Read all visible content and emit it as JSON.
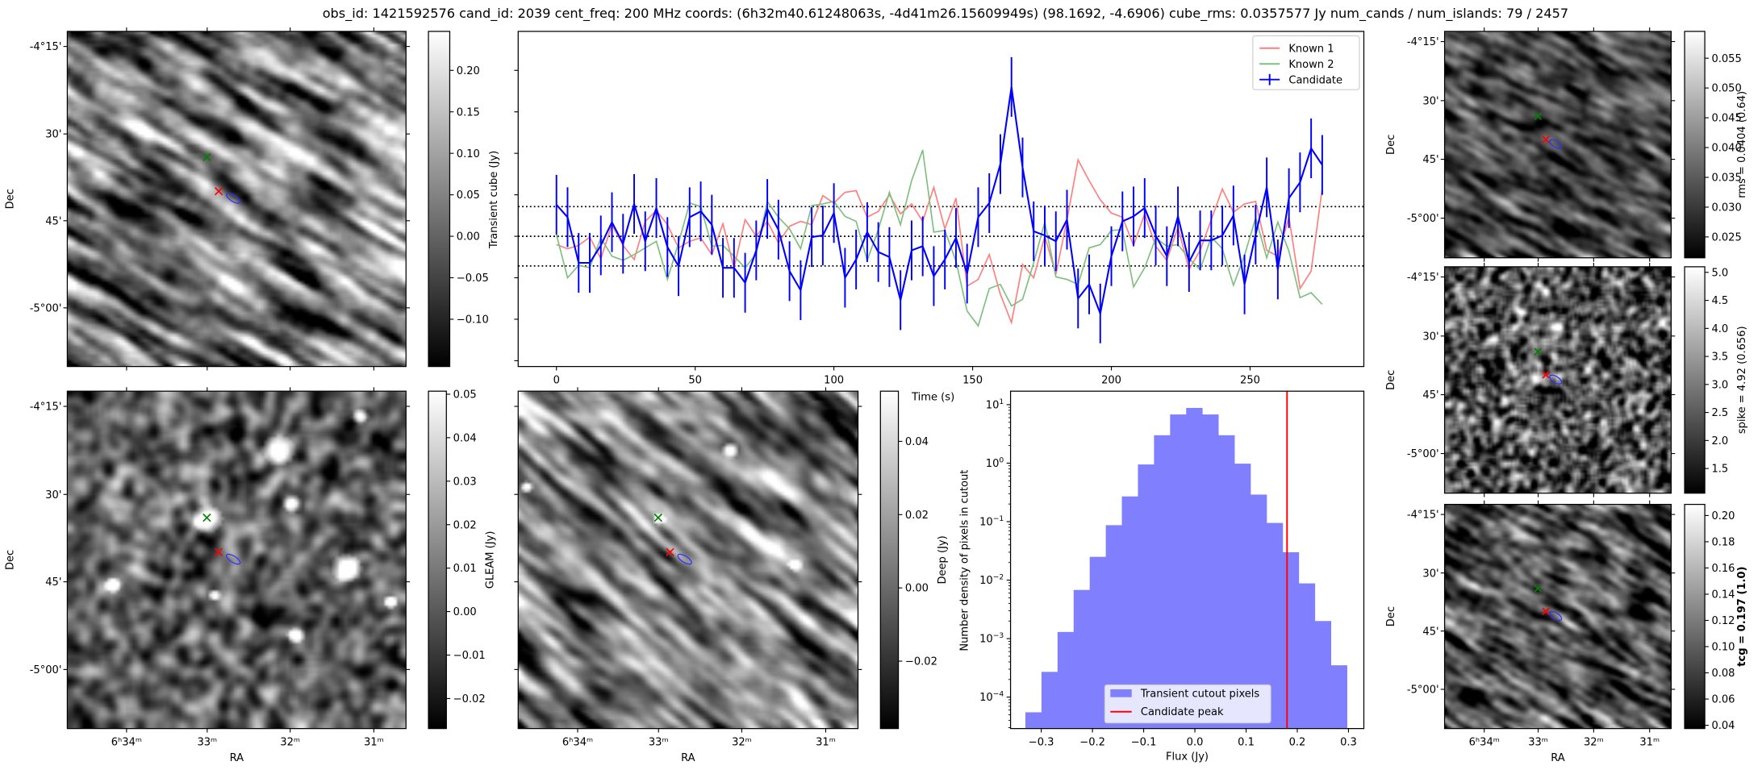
{
  "title": "obs_id: 1421592576 cand_id: 2039 cent_freq: 200 MHz coords: (6h32m40.61248063s, -4d41m26.15609949s) (98.1692, -4.6906) cube_rms: 0.0357577 Jy num_cands / num_islands: 79 / 2457",
  "sky_axes": {
    "ra_label": "RA",
    "dec_label": "Dec",
    "ra_ticks": [
      "6ʰ34ᵐ",
      "33ᵐ",
      "32ᵐ",
      "31ᵐ"
    ],
    "dec_ticks": [
      "-4°15'",
      "30'",
      "45'",
      "-5°00'"
    ]
  },
  "panels": [
    {
      "key": "transient",
      "colorbar": {
        "label": "",
        "bold": false,
        "range": [
          -0.157,
          0.247
        ],
        "ticks": [
          -0.1,
          -0.05,
          0.0,
          0.05,
          0.1,
          0.15,
          0.2
        ],
        "tick_labels": [
          "−0.10",
          "−0.05",
          "0.00",
          "0.05",
          "0.10",
          "0.15",
          "0.20"
        ]
      }
    },
    {
      "key": "gleam",
      "colorbar": {
        "label": "GLEAM (Jy)",
        "bold": false,
        "range": [
          -0.0269,
          0.0507
        ],
        "ticks": [
          -0.02,
          -0.01,
          0.0,
          0.01,
          0.02,
          0.03,
          0.04,
          0.05
        ],
        "tick_labels": [
          "−0.02",
          "−0.01",
          "0.00",
          "0.01",
          "0.02",
          "0.03",
          "0.04",
          "0.05"
        ]
      }
    },
    {
      "key": "deep",
      "colorbar": {
        "label": "Deep (Jy)",
        "bold": false,
        "range": [
          -0.0384,
          0.0537
        ],
        "ticks": [
          -0.02,
          0.0,
          0.02,
          0.04
        ],
        "tick_labels": [
          "−0.02",
          "0.00",
          "0.02",
          "0.04"
        ]
      }
    },
    {
      "key": "rms",
      "colorbar": {
        "label": "rms = 0.0404 (0.64)",
        "bold": false,
        "range": [
          0.0215,
          0.0595
        ],
        "ticks": [
          0.025,
          0.03,
          0.035,
          0.04,
          0.045,
          0.05,
          0.055
        ],
        "tick_labels": [
          "0.025",
          "0.030",
          "0.035",
          "0.040",
          "0.045",
          "0.050",
          "0.055"
        ]
      }
    },
    {
      "key": "spike",
      "colorbar": {
        "label": "spike = 4.92 (0.656)",
        "bold": false,
        "range": [
          1.06,
          5.1
        ],
        "ticks": [
          1.5,
          2.0,
          2.5,
          3.0,
          3.5,
          4.0,
          4.5,
          5.0
        ],
        "tick_labels": [
          "1.5",
          "2.0",
          "2.5",
          "3.0",
          "3.5",
          "4.0",
          "4.5",
          "5.0"
        ]
      }
    },
    {
      "key": "tcg",
      "colorbar": {
        "label": "tcg = 0.197 (1.0)",
        "bold": true,
        "range": [
          0.0375,
          0.2085
        ],
        "ticks": [
          0.04,
          0.06,
          0.08,
          0.1,
          0.12,
          0.14,
          0.16,
          0.18,
          0.2
        ],
        "tick_labels": [
          "0.04",
          "0.06",
          "0.08",
          "0.10",
          "0.12",
          "0.14",
          "0.16",
          "0.18",
          "0.20"
        ]
      }
    }
  ],
  "colors": {
    "known1": "#ff7f7f",
    "known2": "#7fbf7f",
    "candidate": "#0000ff",
    "hist": "#8080ff",
    "peak": "#ff0000"
  },
  "chart_data": [
    {
      "type": "line",
      "title": "",
      "xlabel": "Time (s)",
      "ylabel": "Transient cube (Jy)",
      "xlim": [
        -13.8,
        291
      ],
      "ylim": [
        -0.157,
        0.247
      ],
      "xticks": [
        0,
        50,
        100,
        150,
        200,
        250
      ],
      "xtick_labels": [
        "0",
        "50",
        "100",
        "150",
        "200",
        "250"
      ],
      "yticks": [
        -0.15,
        -0.1,
        -0.05,
        0.0,
        0.05,
        0.1,
        0.15,
        0.2
      ],
      "hlines": [
        -0.0357577,
        0,
        0.0357577
      ],
      "legend": {
        "placement": "top-right",
        "entries": [
          "Known 1",
          "Known 2",
          "Candidate"
        ]
      },
      "x": [
        0,
        4,
        8,
        12,
        16,
        20,
        24,
        28,
        32,
        36,
        40,
        44,
        48,
        52,
        56,
        60,
        64,
        68,
        72,
        76,
        80,
        84,
        88,
        92,
        96,
        100,
        104,
        108,
        112,
        116,
        120,
        124,
        128,
        132,
        136,
        140,
        144,
        148,
        152,
        156,
        160,
        164,
        168,
        172,
        176,
        180,
        184,
        188,
        192,
        196,
        200,
        204,
        208,
        212,
        216,
        220,
        224,
        228,
        232,
        236,
        240,
        244,
        248,
        252,
        256,
        260,
        264,
        268,
        272,
        276
      ],
      "series": [
        {
          "name": "Known 1",
          "values": [
            -0.01,
            -0.015,
            -0.011,
            -0.001,
            -0.027,
            0.014,
            -0.011,
            -0.028,
            0.018,
            0.031,
            0.014,
            -0.014,
            -0.006,
            -0.002,
            -0.022,
            0.015,
            -0.038,
            0.02,
            0.0,
            0.018,
            -0.008,
            0.012,
            0.018,
            0.014,
            0.049,
            0.04,
            0.053,
            0.055,
            0.023,
            0.03,
            0.05,
            0.027,
            0.039,
            0.018,
            0.059,
            0.009,
            0.046,
            -0.06,
            -0.052,
            -0.022,
            -0.07,
            -0.104,
            -0.034,
            -0.05,
            0.0,
            -0.046,
            0.02,
            0.092,
            0.067,
            0.044,
            0.028,
            0.023,
            -0.011,
            0.027,
            -0.012,
            -0.029,
            0.011,
            -0.04,
            -0.017,
            0.02,
            0.057,
            0.029,
            0.039,
            0.042,
            -0.017,
            -0.024,
            0.023,
            -0.063,
            -0.042,
            0.058
          ]
        },
        {
          "name": "Known 2",
          "values": [
            0.002,
            -0.05,
            -0.035,
            -0.038,
            -0.002,
            -0.024,
            -0.029,
            -0.022,
            -0.014,
            -0.006,
            -0.052,
            -0.008,
            0.04,
            0.036,
            -0.012,
            -0.011,
            -0.024,
            -0.038,
            -0.021,
            0.042,
            0.023,
            0.009,
            -0.015,
            0.037,
            0.039,
            0.042,
            0.024,
            0.018,
            -0.029,
            0.008,
            0.053,
            0.014,
            0.067,
            0.104,
            0.005,
            0.007,
            -0.03,
            -0.09,
            -0.108,
            -0.063,
            -0.058,
            -0.084,
            -0.076,
            -0.032,
            0.017,
            -0.049,
            -0.052,
            -0.058,
            -0.014,
            -0.01,
            0.007,
            0.008,
            -0.061,
            -0.038,
            -0.002,
            -0.012,
            -0.01,
            -0.027,
            -0.04,
            -0.001,
            -0.015,
            -0.059,
            -0.023,
            0.022,
            -0.026,
            0.017,
            -0.018,
            -0.074,
            -0.068,
            -0.082
          ]
        },
        {
          "name": "Candidate",
          "yerr": 0.036,
          "values": [
            0.038,
            0.023,
            -0.032,
            -0.032,
            -0.011,
            0.017,
            -0.009,
            0.039,
            -0.006,
            0.034,
            -0.013,
            -0.036,
            0.023,
            0.03,
            0.014,
            -0.038,
            -0.038,
            -0.056,
            -0.017,
            0.033,
            0.008,
            -0.042,
            -0.065,
            -0.001,
            0.001,
            0.028,
            -0.05,
            -0.028,
            0.005,
            -0.019,
            -0.025,
            -0.077,
            -0.017,
            -0.012,
            -0.048,
            -0.028,
            -0.002,
            -0.045,
            0.023,
            0.04,
            0.087,
            0.18,
            0.083,
            0.006,
            0.001,
            -0.006,
            0.02,
            -0.075,
            -0.058,
            -0.093,
            -0.024,
            0.018,
            0.024,
            0.034,
            0.001,
            -0.024,
            0.024,
            -0.031,
            -0.005,
            -0.005,
            0.001,
            0.025,
            -0.058,
            0.002,
            0.059,
            -0.04,
            0.046,
            0.065,
            0.106,
            0.086
          ]
        }
      ]
    },
    {
      "type": "bar",
      "subtype": "histogram",
      "xlabel": "Flux (Jy)",
      "ylabel": "Number density of pixels in cutout",
      "yscale": "log",
      "xlim": [
        -0.36,
        0.33
      ],
      "ylim": [
        2.9e-05,
        17
      ],
      "xticks": [
        -0.3,
        -0.2,
        -0.1,
        0.0,
        0.1,
        0.2,
        0.3
      ],
      "xtick_labels": [
        "−0.3",
        "−0.2",
        "−0.1",
        "0.0",
        "0.1",
        "0.2",
        "0.3"
      ],
      "yticks": [
        0.0001,
        0.001,
        0.01,
        0.1,
        1,
        10
      ],
      "ytick_labels": [
        {
          "base": "10",
          "exp": "−4"
        },
        {
          "base": "10",
          "exp": "−3"
        },
        {
          "base": "10",
          "exp": "−2"
        },
        {
          "base": "10",
          "exp": "−1"
        },
        {
          "base": "10",
          "exp": "0"
        },
        {
          "base": "10",
          "exp": "1"
        }
      ],
      "bin_range": [
        -0.331,
        0.297
      ],
      "values": [
        5.5e-05,
        0.00027,
        0.0013,
        0.0068,
        0.025,
        0.087,
        0.27,
        0.95,
        3.0,
        6.8,
        8.8,
        6.8,
        3.0,
        0.98,
        0.29,
        0.095,
        0.03,
        0.0088,
        0.002,
        0.00035
      ],
      "candidate_peak": 0.18,
      "legend": {
        "placement": "lower-center",
        "entries": [
          "Transient cutout pixels",
          "Candidate peak"
        ]
      }
    }
  ]
}
